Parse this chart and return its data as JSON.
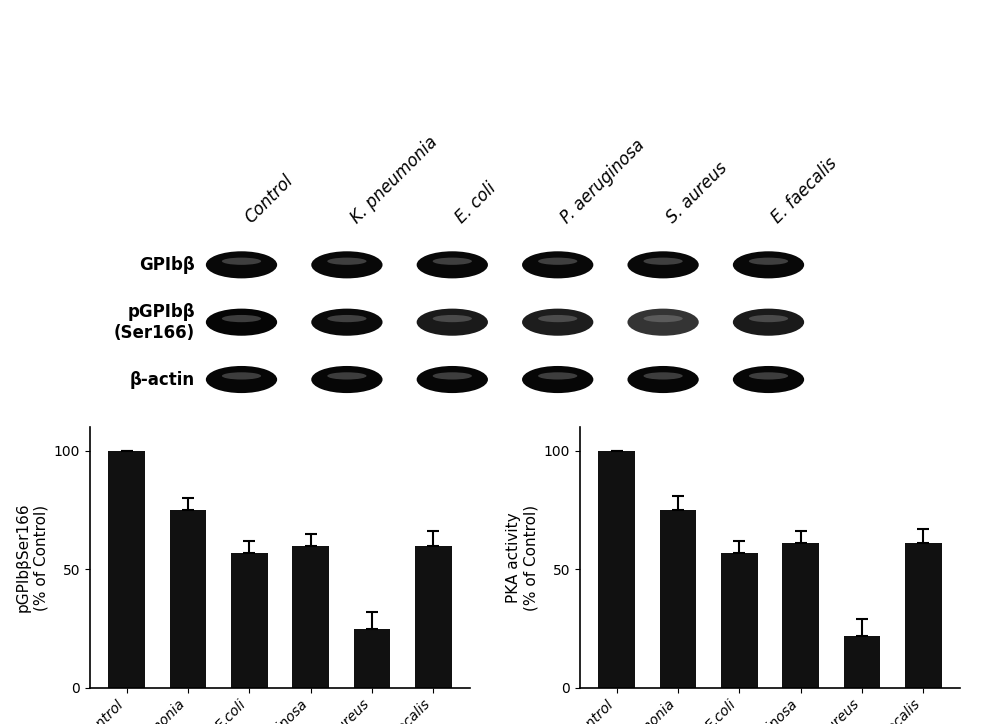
{
  "categories": [
    "Control",
    "K. pneumonia",
    "E.coli",
    "P. aeruginosa",
    "S. aureus",
    "E. faecalis"
  ],
  "bar1_values": [
    100,
    75,
    57,
    60,
    25,
    60
  ],
  "bar1_errors": [
    0,
    5,
    5,
    5,
    7,
    6
  ],
  "bar2_values": [
    100,
    75,
    57,
    61,
    22,
    61
  ],
  "bar2_errors": [
    0,
    6,
    5,
    5,
    7,
    6
  ],
  "bar1_ylabel": "pGPIbβSer166\n(% of Control)",
  "bar2_ylabel": "PKA activity\n(% of Control)",
  "bar_color": "#111111",
  "ylim": [
    0,
    110
  ],
  "yticks": [
    0,
    50,
    100
  ],
  "wb_col_labels": [
    "Control",
    "K. pneumonia",
    "E. coli",
    "P. aeruginosa",
    "S. aureus",
    "E. faecalis"
  ],
  "wb_row_labels": [
    "GPIbβ",
    "pGPIbβ\n(Ser166)",
    "β-actin"
  ],
  "background_color": "#ffffff",
  "bar_width": 0.6,
  "xlabel_rotation": 45,
  "xlabel_ha": "right",
  "xlabel_fontsize": 10,
  "ylabel_fontsize": 11,
  "tick_fontsize": 10,
  "wb_fontsize": 12,
  "wb_col_fontsize": 12,
  "blot_bg_color": "#b0b0b0",
  "blot_row_sep_color": "#ffffff",
  "band_darknesses_row0": [
    0.88,
    0.88,
    0.88,
    0.88,
    0.88,
    0.88
  ],
  "band_darknesses_row1": [
    0.92,
    0.85,
    0.6,
    0.55,
    0.18,
    0.6
  ],
  "band_darknesses_row2": [
    0.9,
    0.9,
    0.9,
    0.9,
    0.9,
    0.9
  ]
}
